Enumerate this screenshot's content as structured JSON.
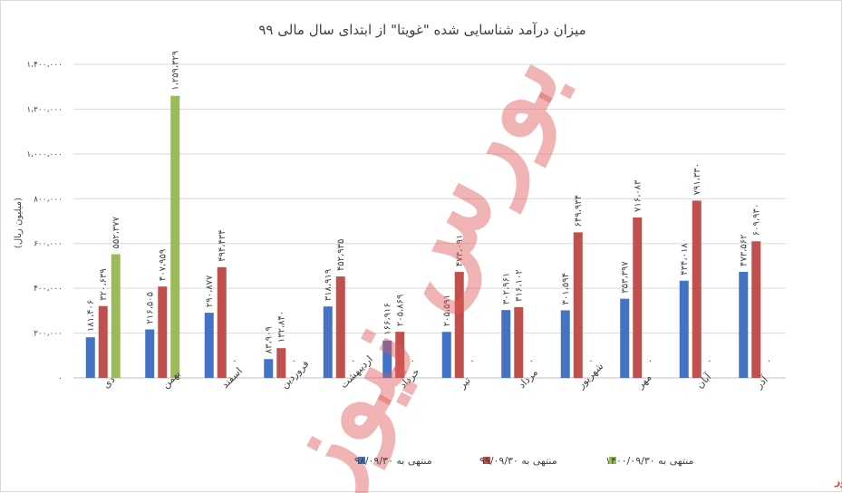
{
  "chart_data": {
    "type": "bar",
    "title": "میزان درآمد شناسایی شده \"غویتا\" از ابتدای سال مالی ۹۹",
    "ylabel": "(میلیون ریال)",
    "xlabel": "",
    "ylim": [
      0,
      1400000
    ],
    "yticks": [
      0,
      200000,
      400000,
      600000,
      800000,
      1000000,
      1200000,
      1400000
    ],
    "ytick_labels": [
      "۰",
      "۲۰۰،۰۰۰",
      "۴۰۰،۰۰۰",
      "۶۰۰،۰۰۰",
      "۸۰۰،۰۰۰",
      "۱،۰۰۰،۰۰۰",
      "۱،۲۰۰،۰۰۰",
      "۱،۴۰۰،۰۰۰"
    ],
    "grid": true,
    "legend_position": "bottom",
    "categories": [
      "دی",
      "بهمن",
      "اسفند",
      "فروردین",
      "اردیبهشت",
      "خرداد",
      "تیر",
      "مرداد",
      "شهریور",
      "مهر",
      "آبان",
      "آذر"
    ],
    "series": [
      {
        "name": "منتهی به ۹۸/۰۹/۳۰",
        "color": "#4472c4",
        "values": [
          181406,
          216505,
          290877,
          83909,
          318919,
          166916,
          205591,
          302961,
          301594,
          353397,
          434018,
          473562
        ],
        "labels": [
          "۱۸۱،۴۰۶",
          "۲۱۶،۵۰۵",
          "۲۹۰،۸۷۷",
          "۸۳،۹۰۹",
          "۳۱۸،۹۱۹",
          "۱۶۶،۹۱۶",
          "۲۰۵،۵۹۱",
          "۳۰۲،۹۶۱",
          "۳۰۱،۵۹۴",
          "۳۵۳،۳۹۷",
          "۴۳۴،۰۱۸",
          "۴۷۳،۵۶۲"
        ]
      },
      {
        "name": "منتهی به ۹۹/۰۹/۳۰",
        "color": "#c0504d",
        "values": [
          320639,
          407959,
          494434,
          132840,
          452935,
          205869,
          473091,
          316102,
          649934,
          716083,
          791330,
          609930
        ],
        "labels": [
          "۳۲۰،۶۳۹",
          "۴۰۷،۹۵۹",
          "۴۹۴،۴۳۴",
          "۱۳۲،۸۴۰",
          "۴۵۲،۹۳۵",
          "۲۰۵،۸۶۹",
          "۴۷۳،۰۹۱",
          "۳۱۶،۱۰۲",
          "۶۴۹،۹۳۴",
          "۷۱۶،۰۸۳",
          "۷۹۱،۳۳۰",
          "۶۰۹،۹۳۰"
        ]
      },
      {
        "name": "منتهی به ۱۴۰۰/۰۹/۳۰",
        "color": "#9bbb59",
        "values": [
          552377,
          1259329,
          0,
          0,
          0,
          0,
          0,
          0,
          0,
          0,
          0,
          0
        ],
        "labels": [
          "۵۵۲،۳۷۷",
          "۱،۲۵۹،۳۲۹",
          "۰",
          "۰",
          "۰",
          "۰",
          "۰",
          "۰",
          "۰",
          "۰",
          "۰",
          "۰"
        ]
      }
    ]
  },
  "watermark": "بورس نیوز",
  "source": "بورس نیوز"
}
